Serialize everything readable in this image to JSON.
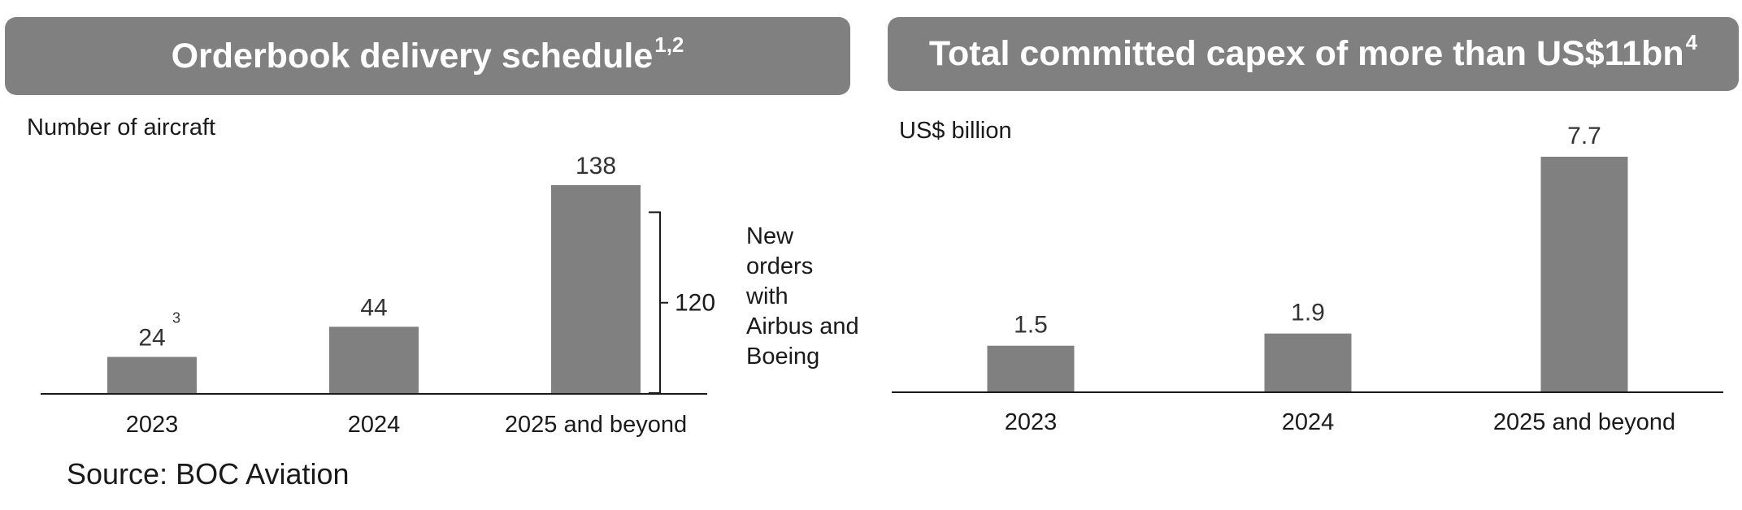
{
  "left_panel": {
    "title": "Orderbook delivery schedule",
    "title_superscript": "1,2"
  },
  "right_panel": {
    "title": "Total committed capex of more than US$11bn",
    "title_superscript": "4"
  },
  "source": "Source: BOC Aviation",
  "colors": {
    "banner": "#808080",
    "bar": "#808080",
    "banner_text": "#ffffff"
  },
  "chart_data": [
    {
      "type": "bar",
      "title": "Orderbook delivery schedule",
      "ylabel": "Number of aircraft",
      "xlabel": "",
      "categories": [
        "2023",
        "2024",
        "2025 and beyond"
      ],
      "values": [
        24,
        44,
        138
      ],
      "data_labels": [
        "24",
        "44",
        "138"
      ],
      "footnotes": [
        {
          "category": "2023",
          "marker": "3"
        }
      ],
      "annotation": {
        "category": "2025 and beyond",
        "value": 120,
        "label": "120",
        "description": [
          "New",
          "orders",
          "with",
          "Airbus and",
          "Boeing"
        ]
      },
      "grid": false,
      "legend": "none"
    },
    {
      "type": "bar",
      "title": "Total committed capex of more than US$11bn",
      "ylabel": "US$ billion",
      "xlabel": "",
      "categories": [
        "2023",
        "2024",
        "2025 and beyond"
      ],
      "values": [
        1.5,
        1.9,
        7.7
      ],
      "data_labels": [
        "1.5",
        "1.9",
        "7.7"
      ],
      "grid": false,
      "legend": "none"
    }
  ]
}
